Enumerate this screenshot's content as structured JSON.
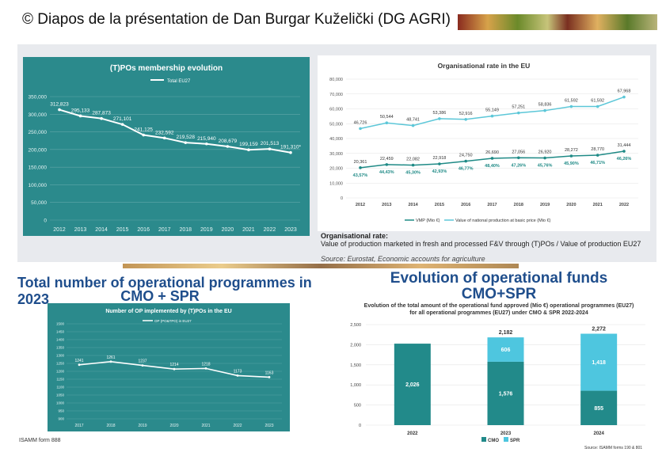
{
  "credit": "© Diapos de la présentation de Dan Burgar Kuželički (DG AGRI)",
  "top_note": {
    "title": "Organisational rate:",
    "definition": "Value of production marketed in fresh and processed F&V through (T)POs / Value of production EU27",
    "source": "Source: Eurostat, Economic accounts for agriculture"
  },
  "bottom_left": {
    "title_line1": "Total number of operational programmes in 2023",
    "title_line2": "CMO + SPR",
    "footer": "ISAMM form 888"
  },
  "bottom_right": {
    "title_line1": "Evolution of operational funds",
    "title_line2": "CMO+SPR",
    "footer": "Source: ISAMM forms 190 & 801"
  },
  "colors": {
    "teal_panel": "#2b8a8c",
    "line_white": "#ffffff",
    "vmp_line": "#1f8a86",
    "value_line": "#5cc7d8",
    "cmo_bar": "#228a8a",
    "spr_bar": "#4ec6df",
    "title_blue": "#1f4e8c"
  },
  "chart_data": [
    {
      "id": "tpo_membership",
      "type": "line",
      "title": "(T)POs membership evolution",
      "series": [
        {
          "name": "Total EU27",
          "values": [
            312823,
            295133,
            287873,
            271101,
            241125,
            232592,
            219528,
            215940,
            208679,
            199159,
            201513,
            191310
          ]
        }
      ],
      "value_labels": [
        "312,823",
        "295,133",
        "287,873",
        "271,101",
        "241,125",
        "232,592",
        "219,528",
        "215,940",
        "208,679",
        "199,159",
        "201,513",
        "191,310*"
      ],
      "categories": [
        "2012",
        "2013",
        "2014",
        "2015",
        "2016",
        "2017",
        "2018",
        "2019",
        "2020",
        "2021",
        "2022",
        "2023"
      ],
      "y_ticks": [
        "0",
        "50,000",
        "100,000",
        "150,000",
        "200,000",
        "250,000",
        "300,000",
        "350,000"
      ],
      "ylim": [
        0,
        350000
      ],
      "grid": true,
      "legend": "top"
    },
    {
      "id": "organisational_rate",
      "type": "line",
      "title": "Organisational rate in the EU",
      "categories": [
        "2012",
        "2013",
        "2014",
        "2015",
        "2016",
        "2017",
        "2018",
        "2019",
        "2020",
        "2021",
        "2022"
      ],
      "series": [
        {
          "name": "VMP (Mio €)",
          "values": [
            20361,
            22459,
            22082,
            22918,
            24750,
            26690,
            27056,
            26920,
            28272,
            28770,
            31444
          ],
          "value_labels": [
            "20,361",
            "22,459",
            "22,082",
            "22,918",
            "24,750",
            "26,690",
            "27,056",
            "26,920",
            "28,272",
            "28,770",
            "31,444"
          ]
        },
        {
          "name": "Value of national production at basic price (Mio €)",
          "values": [
            46726,
            50544,
            48741,
            53386,
            52916,
            55149,
            57251,
            58836,
            61592,
            61592,
            67968
          ],
          "value_labels": [
            "46,726",
            "50,544",
            "48,741",
            "53,386",
            "52,916",
            "55,149",
            "57,251",
            "58,836",
            "61,592",
            "61,592",
            "67,968"
          ]
        }
      ],
      "rates": [
        "43,57%",
        "44,43%",
        "45,30%",
        "42,93%",
        "46,77%",
        "48,40%",
        "47,26%",
        "45,76%",
        "45,90%",
        "46,71%",
        "46,26%"
      ],
      "y_ticks": [
        "0",
        "10,000",
        "20,000",
        "30,000",
        "40,000",
        "50,000",
        "60,000",
        "70,000",
        "80,000"
      ],
      "ylim": [
        0,
        80000
      ],
      "grid": true,
      "legend": "bottom"
    },
    {
      "id": "op_implemented",
      "type": "line",
      "title": "Number of OP implemented by (T)POs in the EU",
      "series": [
        {
          "name": "OP (PO&TPO) in EU27",
          "values": [
            1241,
            1261,
            1237,
            1214,
            1218,
            1173,
            1163
          ]
        }
      ],
      "categories": [
        "2017",
        "2018",
        "2019",
        "2020",
        "2021",
        "2022",
        "2023"
      ],
      "y_ticks": [
        "900",
        "950",
        "1000",
        "1050",
        "1100",
        "1150",
        "1200",
        "1250",
        "1300",
        "1350",
        "1400",
        "1450",
        "1500"
      ],
      "ylim": [
        900,
        1500
      ],
      "grid": true,
      "legend": "top"
    },
    {
      "id": "operational_funds",
      "type": "bar",
      "title": "Evolution of the total amount of the operational fund approved (Mio €) for all operational programmes (EU27) under CMO & SPR 2022-2024",
      "categories": [
        "2022",
        "2023",
        "2024"
      ],
      "series": [
        {
          "name": "CMO",
          "values": [
            2026,
            1576,
            855
          ]
        },
        {
          "name": "SPR",
          "values": [
            0,
            606,
            1418
          ]
        }
      ],
      "value_labels": {
        "CMO": [
          "2,026",
          "1,576",
          "855"
        ],
        "SPR": [
          "",
          "606",
          "1,418"
        ]
      },
      "totals": [
        "",
        "2,182",
        "2,272"
      ],
      "y_ticks": [
        "0",
        "500",
        "1,000",
        "1,500",
        "2,000",
        "2,500"
      ],
      "ylim": [
        0,
        2500
      ],
      "stacked": true,
      "legend": "bottom"
    }
  ]
}
